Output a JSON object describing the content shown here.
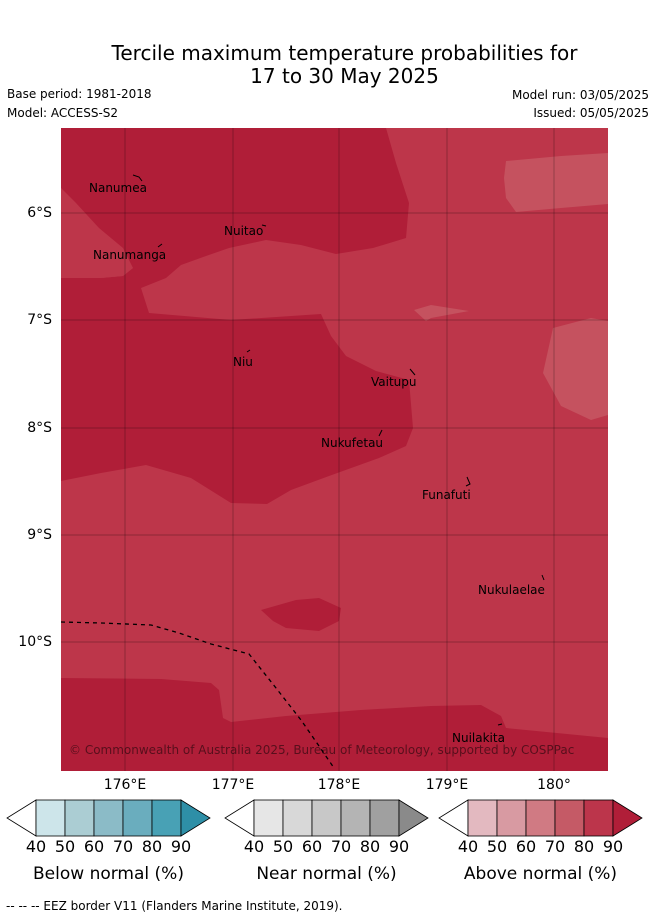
{
  "header": {
    "title_line1": "Tercile maximum temperature probabilities for",
    "title_line2": "17 to 30 May 2025",
    "base_period": "Base period: 1981-2018",
    "model": "Model: ACCESS-S2",
    "model_run": "Model run: 03/05/2025",
    "issued": "Issued: 05/05/2025"
  },
  "map": {
    "y_ticks": [
      "6°S",
      "7°S",
      "8°S",
      "9°S",
      "10°S"
    ],
    "x_ticks": [
      "176°E",
      "177°E",
      "178°E",
      "179°E",
      "180°"
    ],
    "places": [
      "Nanumea",
      "Nuitao",
      "Nanumanga",
      "Niu",
      "Vaitupu",
      "Nukufetau",
      "Funafuti",
      "Nukulaelae",
      "Nuilakita"
    ],
    "credit": "© Commonwealth of Australia 2025, Bureau of Meteorology, supported by COSPPac",
    "colors": {
      "above_70": "#c5525f",
      "above_80": "#bd364a",
      "above_90": "#b01e38",
      "eez_line": "#000000"
    }
  },
  "colorbars": [
    {
      "label": "Below normal (%)",
      "ticks": [
        "40",
        "50",
        "60",
        "70",
        "80",
        "90"
      ],
      "colors": [
        "#ffffff",
        "#cde5ea",
        "#abcdd3",
        "#8bbbc7",
        "#6aadbe",
        "#48a1b5",
        "#2e8fa7"
      ]
    },
    {
      "label": "Near normal (%)",
      "ticks": [
        "40",
        "50",
        "60",
        "70",
        "80",
        "90"
      ],
      "colors": [
        "#ffffff",
        "#e6e6e6",
        "#d8d8d8",
        "#c8c8c8",
        "#b4b4b4",
        "#a0a0a0",
        "#8a8a8a"
      ]
    },
    {
      "label": "Above normal (%)",
      "ticks": [
        "40",
        "50",
        "60",
        "70",
        "80",
        "90"
      ],
      "colors": [
        "#ffffff",
        "#e3b9c0",
        "#d89aa2",
        "#d07a83",
        "#c55a66",
        "#bc354b",
        "#b01e38"
      ]
    }
  ],
  "footnote": "--  --  -- EEZ border V11 (Flanders Marine Institute, 2019)."
}
